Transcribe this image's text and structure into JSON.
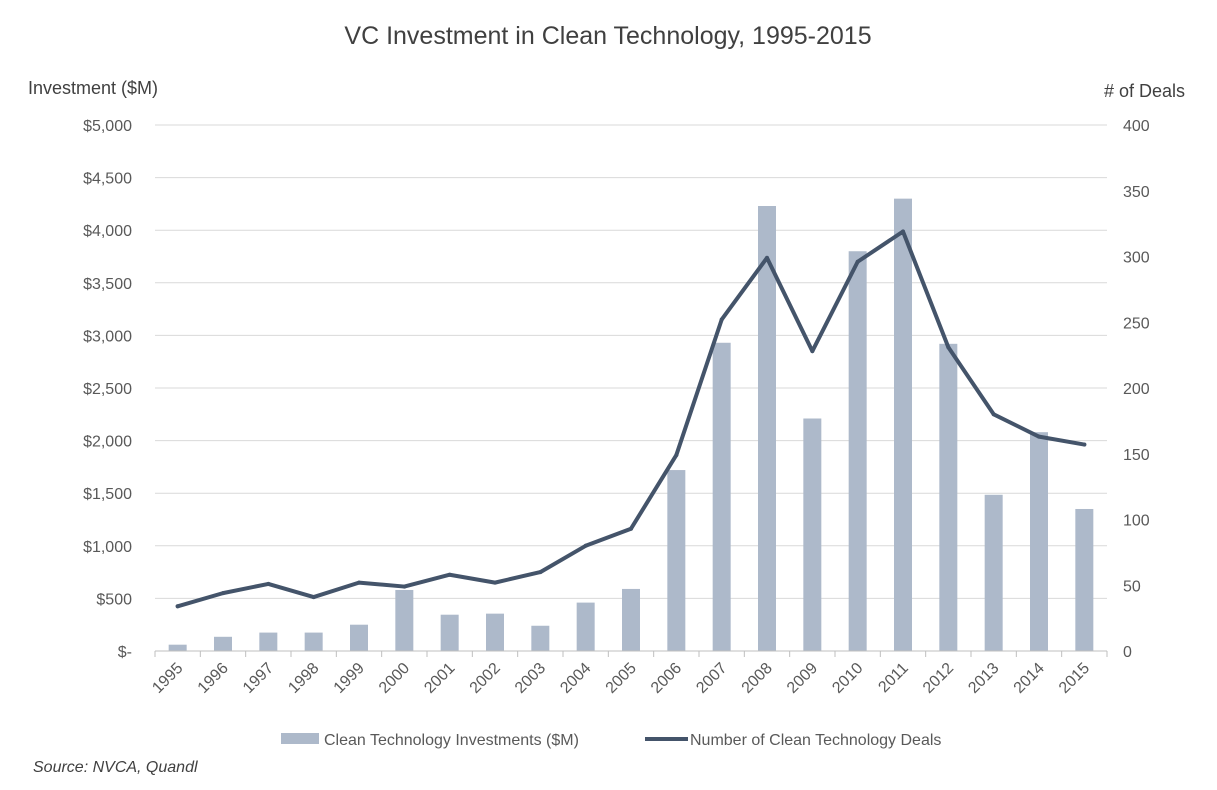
{
  "chart_data": {
    "type": "bar+line",
    "title": "VC Investment in Clean Technology, 1995-2015",
    "ylabel_left": "Investment ($M)",
    "ylabel_right": "# of Deals",
    "categories": [
      "1995",
      "1996",
      "1997",
      "1998",
      "1999",
      "2000",
      "2001",
      "2002",
      "2003",
      "2004",
      "2005",
      "2006",
      "2007",
      "2008",
      "2009",
      "2010",
      "2011",
      "2012",
      "2013",
      "2014",
      "2015"
    ],
    "left_axis": {
      "range": [
        0,
        5000
      ],
      "ticks": [
        0,
        500,
        1000,
        1500,
        2000,
        2500,
        3000,
        3500,
        4000,
        4500,
        5000
      ],
      "tick_labels": [
        "$-",
        "$500",
        "$1,000",
        "$1,500",
        "$2,000",
        "$2,500",
        "$3,000",
        "$3,500",
        "$4,000",
        "$4,500",
        "$5,000"
      ]
    },
    "right_axis": {
      "range": [
        0,
        400
      ],
      "ticks": [
        0,
        50,
        100,
        150,
        200,
        250,
        300,
        350,
        400
      ],
      "tick_labels": [
        "0",
        "50",
        "100",
        "150",
        "200",
        "250",
        "300",
        "350",
        "400"
      ]
    },
    "series": [
      {
        "name": "Clean Technology Investments ($M)",
        "type": "bar",
        "axis": "left",
        "color": "#adb9ca",
        "values": [
          60,
          135,
          175,
          175,
          250,
          580,
          345,
          355,
          240,
          460,
          590,
          1720,
          2930,
          4230,
          2210,
          3800,
          4300,
          2920,
          1485,
          2080,
          1350
        ]
      },
      {
        "name": "Number of Clean Technology Deals",
        "type": "line",
        "axis": "right",
        "color": "#44546a",
        "values": [
          34,
          44,
          51,
          41,
          52,
          49,
          58,
          52,
          60,
          80,
          93,
          149,
          252,
          299,
          228,
          296,
          319,
          231,
          180,
          163,
          157
        ]
      }
    ],
    "grid": true,
    "legend_position": "bottom"
  },
  "source": "Source: NVCA, Quandl"
}
